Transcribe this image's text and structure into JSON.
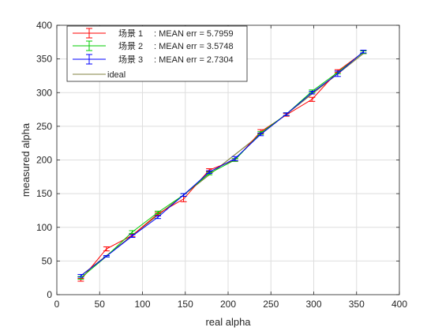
{
  "chart_data": {
    "type": "line",
    "title": "",
    "xlabel": "real alpha",
    "ylabel": "measured alpha",
    "xlim": [
      0,
      400
    ],
    "ylim": [
      0,
      400
    ],
    "xticks": [
      0,
      50,
      100,
      150,
      200,
      250,
      300,
      350,
      400
    ],
    "yticks": [
      0,
      50,
      100,
      150,
      200,
      250,
      300,
      350,
      400
    ],
    "grid": true,
    "legend_position": "top-left",
    "x": [
      28,
      58,
      88,
      118,
      148,
      178,
      208,
      238,
      268,
      298,
      328,
      358
    ],
    "series": [
      {
        "name": "场景 1",
        "mean_err_label": ": MEAN err = 5.7959",
        "color": "#ff0000",
        "values": [
          22,
          68,
          88,
          120,
          142,
          185,
          200,
          242,
          267,
          290,
          332,
          360
        ],
        "errors": [
          2,
          3,
          2,
          2,
          4,
          2,
          2,
          3,
          2,
          3,
          2,
          2
        ]
      },
      {
        "name": "场景 2",
        "mean_err_label": ": MEAN err = 3.5748",
        "color": "#00cc00",
        "values": [
          25,
          57,
          93,
          122,
          148,
          180,
          200,
          240,
          268,
          302,
          330,
          360
        ],
        "errors": [
          2,
          1,
          2,
          2,
          2,
          2,
          2,
          2,
          2,
          2,
          2,
          2
        ]
      },
      {
        "name": "场景 3",
        "mean_err_label": ": MEAN err = 2.7304",
        "color": "#0000ff",
        "values": [
          28,
          57,
          87,
          115,
          148,
          182,
          202,
          238,
          268,
          300,
          328,
          361
        ],
        "errors": [
          2,
          1,
          2,
          2,
          2,
          2,
          3,
          2,
          2,
          2,
          4,
          2
        ]
      },
      {
        "name": "ideal",
        "color": "#808040",
        "values": [
          28,
          58,
          88,
          118,
          148,
          178,
          208,
          238,
          268,
          298,
          328,
          358
        ]
      }
    ]
  }
}
